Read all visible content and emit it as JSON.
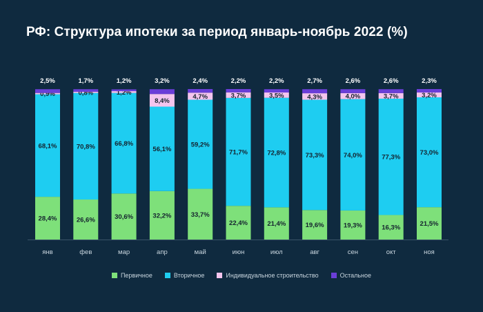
{
  "colors": {
    "background": "#0f2a3f",
    "primary": "#7ee07a",
    "secondary": "#1ecdf1",
    "individual": "#f4c5ee",
    "other": "#6a3ed8"
  },
  "chart_data": {
    "type": "bar",
    "stacked": true,
    "title": "РФ: Структура ипотеки за период январь-ноябрь 2022 (%)",
    "categories": [
      "янв",
      "фев",
      "мар",
      "апр",
      "май",
      "июн",
      "июл",
      "авг",
      "сен",
      "окт",
      "ноя"
    ],
    "series": [
      {
        "name": "Первичное",
        "color": "#7ee07a",
        "values": [
          28.4,
          26.6,
          30.6,
          32.2,
          33.7,
          22.4,
          21.4,
          19.6,
          19.3,
          16.3,
          21.5
        ],
        "labels": [
          "28,4%",
          "26,6%",
          "30,6%",
          "32,2%",
          "33,7%",
          "22,4%",
          "21,4%",
          "19,6%",
          "19,3%",
          "16,3%",
          "21,5%"
        ]
      },
      {
        "name": "Вторичное",
        "color": "#1ecdf1",
        "values": [
          68.1,
          70.8,
          66.8,
          56.1,
          59.2,
          71.7,
          72.8,
          73.3,
          74.0,
          77.3,
          73.0
        ],
        "labels": [
          "68,1%",
          "70,8%",
          "66,8%",
          "56,1%",
          "59,2%",
          "71,7%",
          "72,8%",
          "73,3%",
          "74,0%",
          "77,3%",
          "73,0%"
        ]
      },
      {
        "name": "Индивидуальное строительство",
        "color": "#f4c5ee",
        "values": [
          0.9,
          0.8,
          1.2,
          8.4,
          4.7,
          3.7,
          3.5,
          4.3,
          4.0,
          3.7,
          3.2
        ],
        "labels": [
          "0,9%",
          "0,8%",
          "1,2%",
          "8,4%",
          "4,7%",
          "3,7%",
          "3,5%",
          "4,3%",
          "4,0%",
          "3,7%",
          "3,2%"
        ]
      },
      {
        "name": "Остальное",
        "color": "#6a3ed8",
        "values": [
          2.5,
          1.7,
          1.2,
          3.2,
          2.4,
          2.2,
          2.2,
          2.7,
          2.6,
          2.6,
          2.3
        ],
        "labels": [
          "2,5%",
          "1,7%",
          "1,2%",
          "3,2%",
          "2,4%",
          "2,2%",
          "2,2%",
          "2,7%",
          "2,6%",
          "2,6%",
          "2,3%"
        ]
      }
    ],
    "ylim": [
      0,
      100
    ],
    "grid": false,
    "legend": "bottom"
  }
}
